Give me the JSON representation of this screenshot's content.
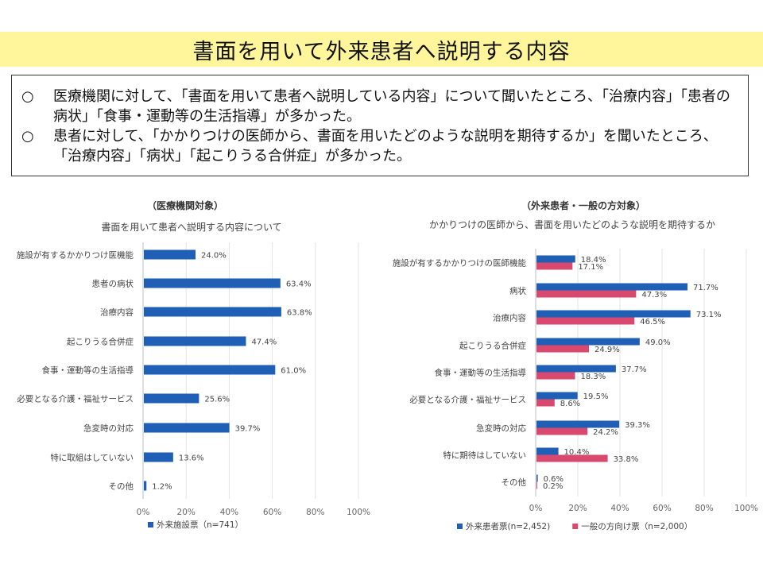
{
  "page": {
    "title": "書面を用いて外来患者へ説明する内容",
    "summary": [
      {
        "mark": "○",
        "text": "医療機関に対して、「書面を用いて患者へ説明している内容」について聞いたところ、「治療内容」「患者の病状」「食事・運動等の生活指導」が多かった。"
      },
      {
        "mark": "○",
        "text": "患者に対して、「かかりつけの医師から、書面を用いたどのような説明を期待するか」を聞いたところ、「治療内容」「病状」「起こりうる合併症」が多かった。"
      }
    ]
  },
  "chart_data": [
    {
      "type": "bar",
      "orientation": "horizontal",
      "heading": "（医療機関対象）",
      "title": "書面を用いて患者へ説明する内容について",
      "categories": [
        "施設が有するかかりつけ医機能",
        "患者の病状",
        "治療内容",
        "起こりうる合併症",
        "食事・運動等の生活指導",
        "必要となる介護・福祉サービス",
        "急変時の対応",
        "特に取組はしていない",
        "その他"
      ],
      "series": [
        {
          "name": "外来施設票（n=741）",
          "color": "#1f5fb5",
          "values": [
            24.0,
            63.4,
            63.8,
            47.4,
            61.0,
            25.6,
            39.7,
            13.6,
            1.2
          ],
          "labels": [
            "24.0%",
            "63.4%",
            "63.8%",
            "47.4%",
            "61.0%",
            "25.6%",
            "39.7%",
            "13.6%",
            "1.2%"
          ]
        }
      ],
      "xlim": [
        0,
        100
      ],
      "ticks": [
        "0%",
        "20%",
        "40%",
        "60%",
        "80%",
        "100%"
      ],
      "grid": true,
      "legend": "bottom"
    },
    {
      "type": "bar",
      "orientation": "horizontal",
      "heading": "（外来患者・一般の方対象）",
      "title": "かかりつけの医師から、書面を用いたどのような説明を期待するか",
      "categories": [
        "施設が有するかかりつけの医師機能",
        "病状",
        "治療内容",
        "起こりうる合併症",
        "食事・運動等の生活指導",
        "必要となる介護・福祉サービス",
        "急変時の対応",
        "特に期待はしていない",
        "その他"
      ],
      "series": [
        {
          "name": "外来患者票(n=2,452)",
          "color": "#1f5fb5",
          "values": [
            18.4,
            71.7,
            73.1,
            49.0,
            37.7,
            19.5,
            39.3,
            10.4,
            0.6
          ],
          "labels": [
            "18.4%",
            "71.7%",
            "73.1%",
            "49.0%",
            "37.7%",
            "19.5%",
            "39.3%",
            "10.4%",
            "0.6%"
          ]
        },
        {
          "name": "一般の方向け票（n=2,000）",
          "color": "#d9486e",
          "values": [
            17.1,
            47.3,
            46.5,
            24.9,
            18.3,
            8.6,
            24.2,
            33.8,
            0.2
          ],
          "labels": [
            "17.1%",
            "47.3%",
            "46.5%",
            "24.9%",
            "18.3%",
            "8.6%",
            "24.2%",
            "33.8%",
            "0.2%"
          ]
        }
      ],
      "xlim": [
        0,
        100
      ],
      "ticks": [
        "0%",
        "20%",
        "40%",
        "60%",
        "80%",
        "100%"
      ],
      "grid": true,
      "legend": "bottom"
    }
  ]
}
